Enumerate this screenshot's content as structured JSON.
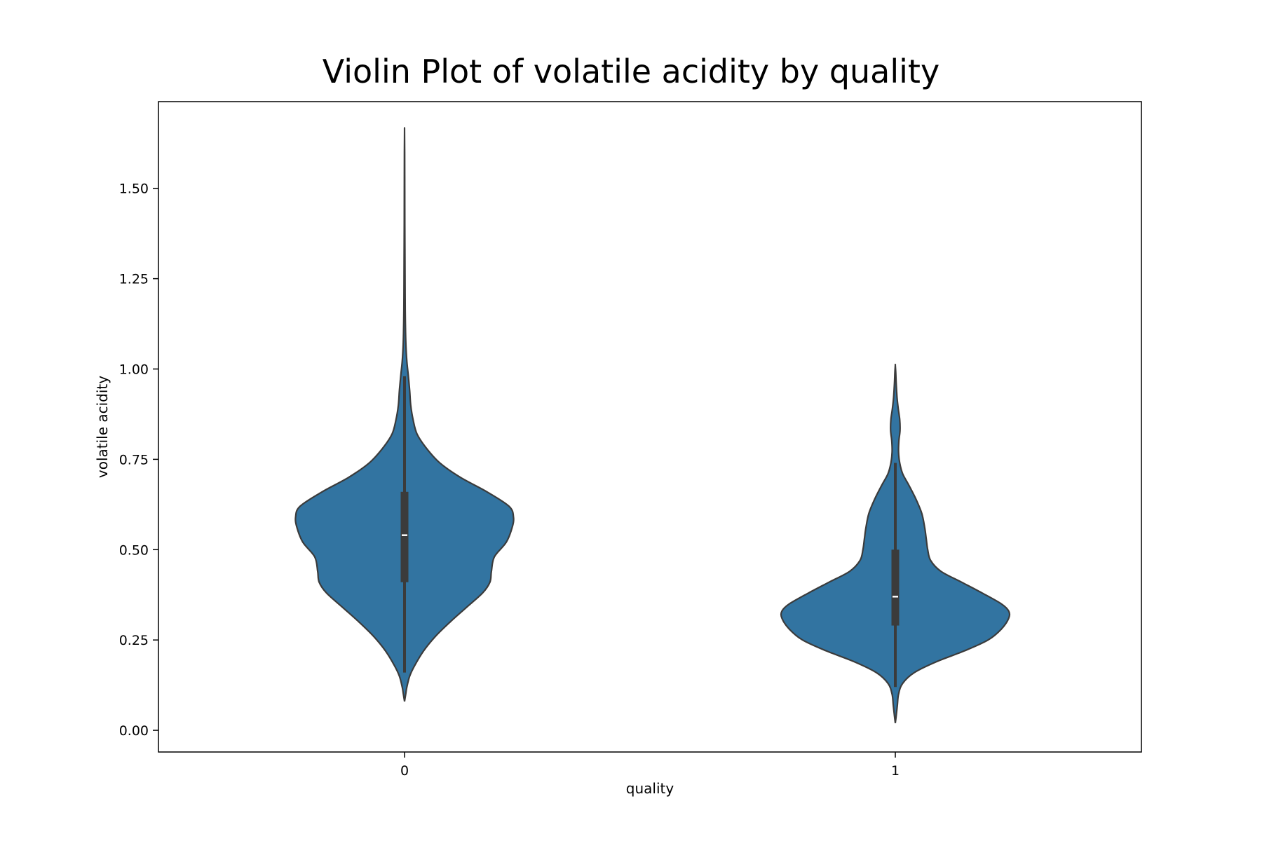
{
  "chart_data": {
    "type": "violin",
    "title": "Violin Plot of volatile acidity by quality",
    "xlabel": "quality",
    "ylabel": "volatile acidity",
    "categories": [
      "0",
      "1"
    ],
    "ylim": [
      -0.06,
      1.74
    ],
    "yticks": [
      "0.00",
      "0.25",
      "0.50",
      "0.75",
      "1.00",
      "1.25",
      "1.50"
    ],
    "fill_color": "#3274a1",
    "edge_color": "#3b3b3b",
    "box_color": "#3b3b3b",
    "median_color": "#ffffff",
    "grid": false,
    "violins": [
      {
        "category": "0",
        "min": 0.16,
        "q1": 0.41,
        "median": 0.54,
        "q3": 0.66,
        "max": 0.98,
        "density": [
          [
            0.08,
            0.0
          ],
          [
            0.1,
            0.008
          ],
          [
            0.12,
            0.016
          ],
          [
            0.15,
            0.035
          ],
          [
            0.18,
            0.07
          ],
          [
            0.22,
            0.13
          ],
          [
            0.26,
            0.21
          ],
          [
            0.3,
            0.31
          ],
          [
            0.34,
            0.42
          ],
          [
            0.38,
            0.53
          ],
          [
            0.41,
            0.58
          ],
          [
            0.44,
            0.59
          ],
          [
            0.48,
            0.61
          ],
          [
            0.52,
            0.69
          ],
          [
            0.56,
            0.73
          ],
          [
            0.59,
            0.74
          ],
          [
            0.62,
            0.71
          ],
          [
            0.66,
            0.56
          ],
          [
            0.7,
            0.38
          ],
          [
            0.74,
            0.24
          ],
          [
            0.78,
            0.15
          ],
          [
            0.82,
            0.085
          ],
          [
            0.86,
            0.058
          ],
          [
            0.9,
            0.042
          ],
          [
            0.94,
            0.035
          ],
          [
            0.98,
            0.026
          ],
          [
            1.02,
            0.016
          ],
          [
            1.06,
            0.01
          ],
          [
            1.1,
            0.007
          ],
          [
            1.15,
            0.005
          ],
          [
            1.2,
            0.004
          ],
          [
            1.3,
            0.003
          ],
          [
            1.4,
            0.002
          ],
          [
            1.5,
            0.0015
          ],
          [
            1.6,
            0.001
          ],
          [
            1.66,
            0.0
          ]
        ]
      },
      {
        "category": "1",
        "min": 0.12,
        "q1": 0.29,
        "median": 0.37,
        "q3": 0.5,
        "max": 0.74,
        "density": [
          [
            0.02,
            0.0
          ],
          [
            0.04,
            0.006
          ],
          [
            0.07,
            0.014
          ],
          [
            0.1,
            0.022
          ],
          [
            0.13,
            0.05
          ],
          [
            0.16,
            0.13
          ],
          [
            0.19,
            0.28
          ],
          [
            0.22,
            0.47
          ],
          [
            0.25,
            0.63
          ],
          [
            0.28,
            0.72
          ],
          [
            0.31,
            0.77
          ],
          [
            0.33,
            0.77
          ],
          [
            0.35,
            0.72
          ],
          [
            0.38,
            0.59
          ],
          [
            0.41,
            0.45
          ],
          [
            0.44,
            0.31
          ],
          [
            0.47,
            0.24
          ],
          [
            0.5,
            0.22
          ],
          [
            0.53,
            0.21
          ],
          [
            0.56,
            0.2
          ],
          [
            0.6,
            0.18
          ],
          [
            0.64,
            0.14
          ],
          [
            0.68,
            0.09
          ],
          [
            0.71,
            0.05
          ],
          [
            0.74,
            0.03
          ],
          [
            0.77,
            0.022
          ],
          [
            0.8,
            0.024
          ],
          [
            0.83,
            0.032
          ],
          [
            0.86,
            0.03
          ],
          [
            0.89,
            0.02
          ],
          [
            0.92,
            0.012
          ],
          [
            0.96,
            0.006
          ],
          [
            0.99,
            0.003
          ],
          [
            1.01,
            0.0
          ]
        ]
      }
    ]
  }
}
